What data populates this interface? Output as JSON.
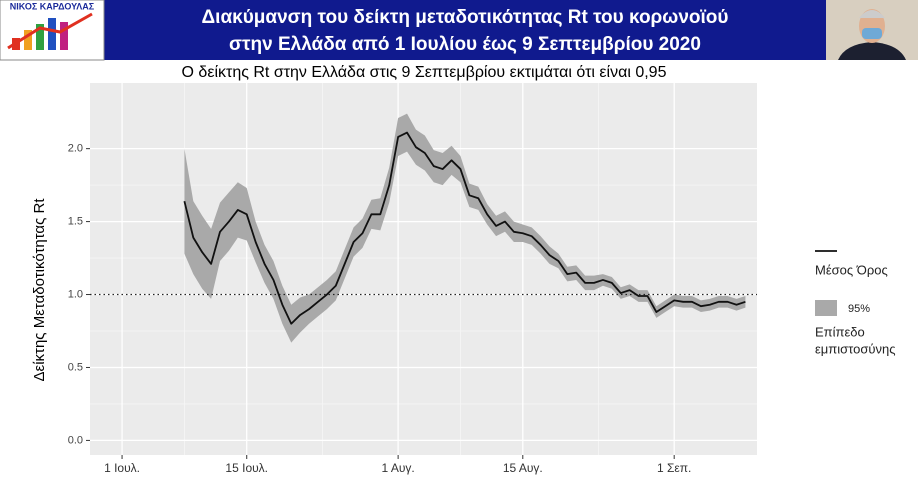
{
  "header": {
    "logo": "ΝΙΚΟΣ ΚΑΡΔΟΥΛΑΣ",
    "title_lines": [
      "Διακύμανση του δείκτη μεταδοτικότητας Rt του κορωνοϊού",
      "στην Ελλάδα από 1 Ιουλίου έως 9 Σεπτεμβρίου 2020"
    ]
  },
  "chart_data": {
    "type": "line",
    "title": "Ο δείκτης Rt στην Ελλάδα στις 9 Σεπτεμβρίου εκτιμάται ότι είναι 0,95",
    "y_label": "Δείκτης Μεταδοτικότητας Rt",
    "x": [
      7,
      8,
      9,
      10,
      11,
      12,
      13,
      14,
      15,
      16,
      17,
      18,
      19,
      20,
      21,
      22,
      23,
      24,
      25,
      26,
      27,
      28,
      29,
      30,
      31,
      32,
      33,
      34,
      35,
      36,
      37,
      38,
      39,
      40,
      41,
      42,
      43,
      44,
      45,
      46,
      47,
      48,
      49,
      50,
      51,
      52,
      53,
      54,
      55,
      56,
      57,
      58,
      59,
      60,
      61,
      62,
      63,
      64,
      65,
      66,
      67,
      68,
      69,
      70
    ],
    "series": [
      {
        "name": "Μέσος Όρος",
        "color": "#111111",
        "values": [
          1.64,
          1.39,
          1.29,
          1.21,
          1.43,
          1.5,
          1.58,
          1.55,
          1.36,
          1.21,
          1.1,
          0.93,
          0.8,
          0.86,
          0.9,
          0.95,
          1.0,
          1.06,
          1.21,
          1.36,
          1.42,
          1.55,
          1.55,
          1.75,
          2.08,
          2.11,
          2.01,
          1.97,
          1.88,
          1.86,
          1.92,
          1.86,
          1.68,
          1.66,
          1.55,
          1.47,
          1.5,
          1.43,
          1.42,
          1.4,
          1.34,
          1.27,
          1.23,
          1.14,
          1.15,
          1.08,
          1.08,
          1.1,
          1.08,
          1.01,
          1.03,
          0.99,
          0.99,
          0.88,
          0.92,
          0.96,
          0.95,
          0.95,
          0.92,
          0.93,
          0.95,
          0.95,
          0.93,
          0.95
        ]
      }
    ],
    "band": {
      "name": "95%",
      "label_lines": [
        "Επίπεδο",
        "εμπιστοσύνης"
      ],
      "color": "#a9a9a9",
      "upper": [
        2.0,
        1.64,
        1.54,
        1.45,
        1.63,
        1.7,
        1.77,
        1.73,
        1.5,
        1.34,
        1.23,
        1.06,
        0.93,
        0.98,
        1.0,
        1.05,
        1.1,
        1.16,
        1.31,
        1.46,
        1.52,
        1.65,
        1.66,
        1.87,
        2.21,
        2.24,
        2.13,
        2.09,
        1.99,
        1.97,
        2.02,
        1.95,
        1.76,
        1.74,
        1.62,
        1.54,
        1.57,
        1.5,
        1.48,
        1.46,
        1.4,
        1.33,
        1.28,
        1.19,
        1.2,
        1.13,
        1.13,
        1.14,
        1.12,
        1.05,
        1.07,
        1.03,
        1.03,
        0.92,
        0.96,
        1.0,
        0.99,
        0.99,
        0.96,
        0.97,
        0.99,
        0.99,
        0.97,
        0.99
      ],
      "lower": [
        1.28,
        1.14,
        1.04,
        0.97,
        1.23,
        1.3,
        1.39,
        1.37,
        1.22,
        1.08,
        0.97,
        0.8,
        0.67,
        0.74,
        0.8,
        0.85,
        0.9,
        0.96,
        1.11,
        1.26,
        1.32,
        1.45,
        1.44,
        1.63,
        1.95,
        1.98,
        1.89,
        1.85,
        1.77,
        1.75,
        1.82,
        1.77,
        1.6,
        1.58,
        1.48,
        1.4,
        1.43,
        1.36,
        1.36,
        1.34,
        1.28,
        1.21,
        1.18,
        1.09,
        1.1,
        1.03,
        1.03,
        1.06,
        1.04,
        0.97,
        0.99,
        0.95,
        0.95,
        0.84,
        0.88,
        0.92,
        0.91,
        0.91,
        0.88,
        0.89,
        0.91,
        0.91,
        0.89,
        0.91
      ]
    },
    "hline": 1,
    "xlim": [
      -3.6,
      71.3
    ],
    "xticks": [
      {
        "value": 0,
        "label": "1 Ιουλ."
      },
      {
        "value": 14,
        "label": "15 Ιουλ."
      },
      {
        "value": 31,
        "label": "1 Αυγ."
      },
      {
        "value": 45,
        "label": "15 Αυγ."
      },
      {
        "value": 62,
        "label": "1 Σεπ."
      }
    ],
    "ylim": [
      -0.1,
      2.45
    ],
    "yticks": [
      {
        "value": 0,
        "label": "0.0"
      },
      {
        "value": 0.5,
        "label": "0.5"
      },
      {
        "value": 1,
        "label": "1.0"
      },
      {
        "value": 1.5,
        "label": "1.5"
      },
      {
        "value": 2,
        "label": "2.0"
      }
    ],
    "grid": true,
    "legend": "right"
  }
}
